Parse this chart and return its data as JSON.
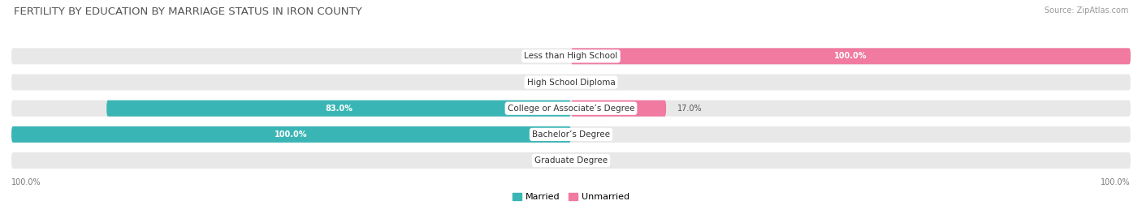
{
  "title": "FERTILITY BY EDUCATION BY MARRIAGE STATUS IN IRON COUNTY",
  "source": "Source: ZipAtlas.com",
  "categories": [
    "Less than High School",
    "High School Diploma",
    "College or Associate’s Degree",
    "Bachelor’s Degree",
    "Graduate Degree"
  ],
  "married": [
    0.0,
    0.0,
    83.0,
    100.0,
    0.0
  ],
  "unmarried": [
    100.0,
    0.0,
    17.0,
    0.0,
    0.0
  ],
  "married_color": "#3ab5b5",
  "unmarried_color": "#f07aa0",
  "bar_bg_color": "#e8e8e8",
  "background_color": "#ffffff",
  "title_fontsize": 9.5,
  "source_fontsize": 7,
  "label_fontsize": 7.5,
  "bar_label_fontsize": 7,
  "legend_fontsize": 8,
  "bar_height": 0.62,
  "figsize": [
    14.06,
    2.69
  ],
  "dpi": 100
}
